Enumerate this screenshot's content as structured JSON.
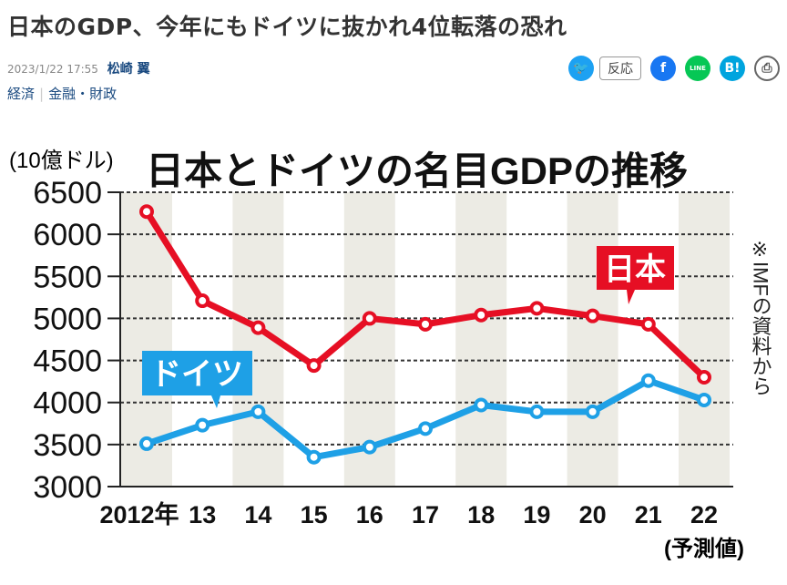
{
  "article": {
    "title": "日本のGDP、今年にもドイツに抜かれ4位転落の恐れ",
    "datetime": "2023/1/22 17:55",
    "author": "松崎 翼",
    "categories": [
      "経済",
      "金融・財政"
    ]
  },
  "share": {
    "twitter_icon": "twitter-icon",
    "reaction_label": "反応",
    "facebook_icon": "facebook-icon",
    "line_icon": "line-icon",
    "line_label": "LINE",
    "hatena_label": "B!",
    "print_icon": "print-icon"
  },
  "chart_data": {
    "type": "line",
    "title": "日本とドイツの名目GDPの推移",
    "ylabel": "(10億ドル)",
    "note": "※IMFの資料から",
    "categories": [
      "2012年",
      "13",
      "14",
      "15",
      "16",
      "17",
      "18",
      "19",
      "20",
      "21",
      "22"
    ],
    "forecast_label": "(予測値)",
    "ylim": [
      3000,
      6500
    ],
    "yticks": [
      3000,
      3500,
      4000,
      4500,
      5000,
      5500,
      6000,
      6500
    ],
    "grid": true,
    "series": [
      {
        "name": "日本",
        "color": "#e60f24",
        "values": [
          6270,
          5210,
          4890,
          4440,
          5000,
          4930,
          5040,
          5120,
          5030,
          4930,
          4300
        ]
      },
      {
        "name": "ドイツ",
        "color": "#1ea0e6",
        "values": [
          3510,
          3730,
          3890,
          3350,
          3470,
          3690,
          3970,
          3890,
          3890,
          4260,
          4030
        ]
      }
    ]
  }
}
